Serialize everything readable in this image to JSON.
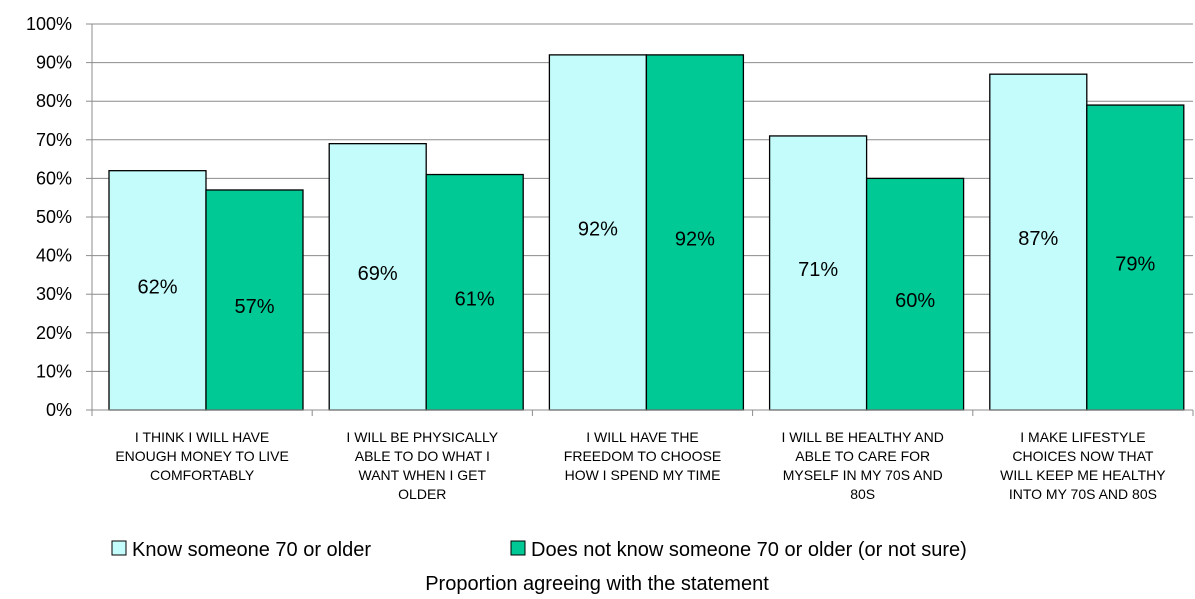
{
  "chart_data": {
    "type": "bar",
    "categories": [
      [
        "I THINK I WILL HAVE",
        "ENOUGH MONEY TO LIVE",
        "COMFORTABLY"
      ],
      [
        "I WILL BE PHYSICALLY",
        "ABLE TO DO WHAT I",
        "WANT WHEN I GET",
        "OLDER"
      ],
      [
        "I WILL HAVE THE",
        "FREEDOM TO CHOOSE",
        "HOW I SPEND MY TIME"
      ],
      [
        "I WILL BE HEALTHY AND",
        "ABLE TO CARE FOR",
        "MYSELF IN MY 70S AND",
        "80S"
      ],
      [
        "I MAKE LIFESTYLE",
        "CHOICES NOW THAT",
        "WILL KEEP ME HEALTHY",
        "INTO MY 70S AND 80S"
      ]
    ],
    "series": [
      {
        "name": "Know someone 70 or older",
        "color": "#c4fcfc",
        "values": [
          62,
          69,
          92,
          71,
          87
        ],
        "labels": [
          "62%",
          "69%",
          "92%",
          "71%",
          "87%"
        ]
      },
      {
        "name": "Does not know someone 70 or older (or not sure)",
        "color": "#00c995",
        "values": [
          57,
          61,
          92,
          60,
          79
        ],
        "labels": [
          "57%",
          "61%",
          "92%",
          "60%",
          "79%"
        ]
      }
    ],
    "yticks": [
      "0%",
      "10%",
      "20%",
      "30%",
      "40%",
      "50%",
      "60%",
      "70%",
      "80%",
      "90%",
      "100%"
    ],
    "ylim": [
      0,
      100
    ],
    "xlabel": "Proportion agreeing with the statement",
    "ylabel": "",
    "grid": true,
    "legend": "bottom"
  }
}
